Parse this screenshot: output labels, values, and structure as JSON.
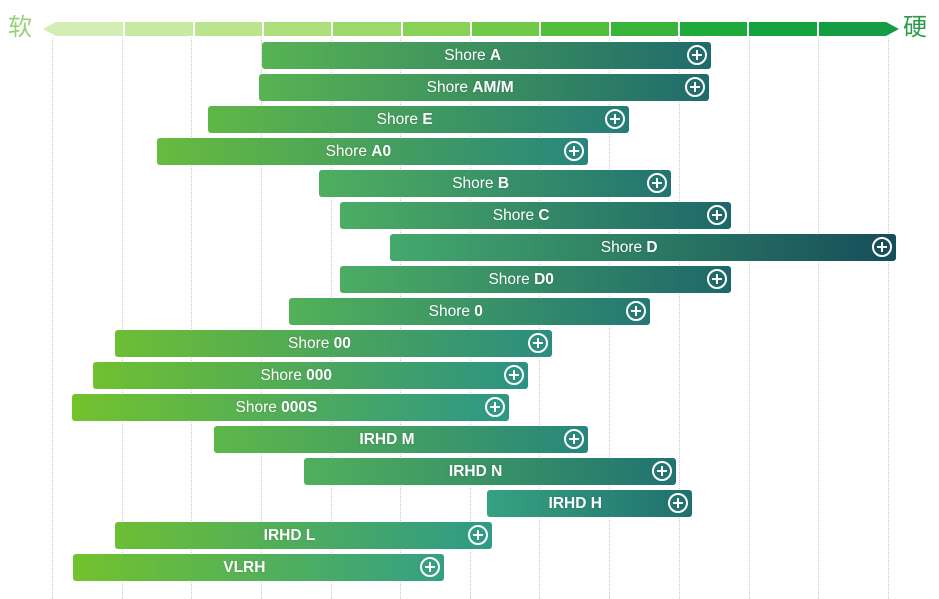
{
  "scale": {
    "soft_label": "软",
    "hard_label": "硬",
    "segment_colors": [
      "#d3eeb4",
      "#c7e9a2",
      "#bbe48f",
      "#ade07d",
      "#9bd96a",
      "#88d257",
      "#70c947",
      "#52be3c",
      "#38b43a",
      "#1fab3c",
      "#15a340",
      "#149d42"
    ]
  },
  "gradient": {
    "start": "#74c22c",
    "mid": "#2f9e8a",
    "end": "#154d5a"
  },
  "scales": [
    {
      "name": "shore-a",
      "prefix": "Shore ",
      "code": "A",
      "range": [
        0.249,
        0.781
      ]
    },
    {
      "name": "shore-am",
      "prefix": "Shore ",
      "code": "AM/M",
      "range": [
        0.245,
        0.779
      ]
    },
    {
      "name": "shore-e",
      "prefix": "Shore ",
      "code": "E",
      "range": [
        0.185,
        0.684
      ]
    },
    {
      "name": "shore-a0",
      "prefix": "Shore ",
      "code": "A0",
      "range": [
        0.124,
        0.635
      ]
    },
    {
      "name": "shore-b",
      "prefix": "Shore ",
      "code": "B",
      "range": [
        0.316,
        0.733
      ]
    },
    {
      "name": "shore-c",
      "prefix": "Shore ",
      "code": "C",
      "range": [
        0.341,
        0.804
      ]
    },
    {
      "name": "shore-d",
      "prefix": "Shore ",
      "code": "D",
      "range": [
        0.401,
        1.0
      ]
    },
    {
      "name": "shore-d0",
      "prefix": "Shore ",
      "code": "D0",
      "range": [
        0.341,
        0.804
      ]
    },
    {
      "name": "shore-0",
      "prefix": "Shore ",
      "code": "0",
      "range": [
        0.281,
        0.709
      ]
    },
    {
      "name": "shore-00",
      "prefix": "Shore ",
      "code": "00",
      "range": [
        0.075,
        0.592
      ]
    },
    {
      "name": "shore-000",
      "prefix": "Shore ",
      "code": "000",
      "range": [
        0.048,
        0.564
      ]
    },
    {
      "name": "shore-000s",
      "prefix": "Shore ",
      "code": "000S",
      "range": [
        0.024,
        0.541
      ]
    },
    {
      "name": "irhd-m",
      "prefix": "",
      "code": "IRHD M",
      "range": [
        0.192,
        0.635
      ]
    },
    {
      "name": "irhd-n",
      "prefix": "",
      "code": "IRHD N",
      "range": [
        0.298,
        0.739
      ]
    },
    {
      "name": "irhd-h",
      "prefix": "",
      "code": "IRHD H",
      "range": [
        0.515,
        0.758
      ]
    },
    {
      "name": "irhd-l",
      "prefix": "",
      "code": "IRHD L",
      "range": [
        0.075,
        0.521
      ]
    },
    {
      "name": "vlrh",
      "prefix": "",
      "code": "VLRH",
      "range": [
        0.025,
        0.464
      ]
    }
  ]
}
